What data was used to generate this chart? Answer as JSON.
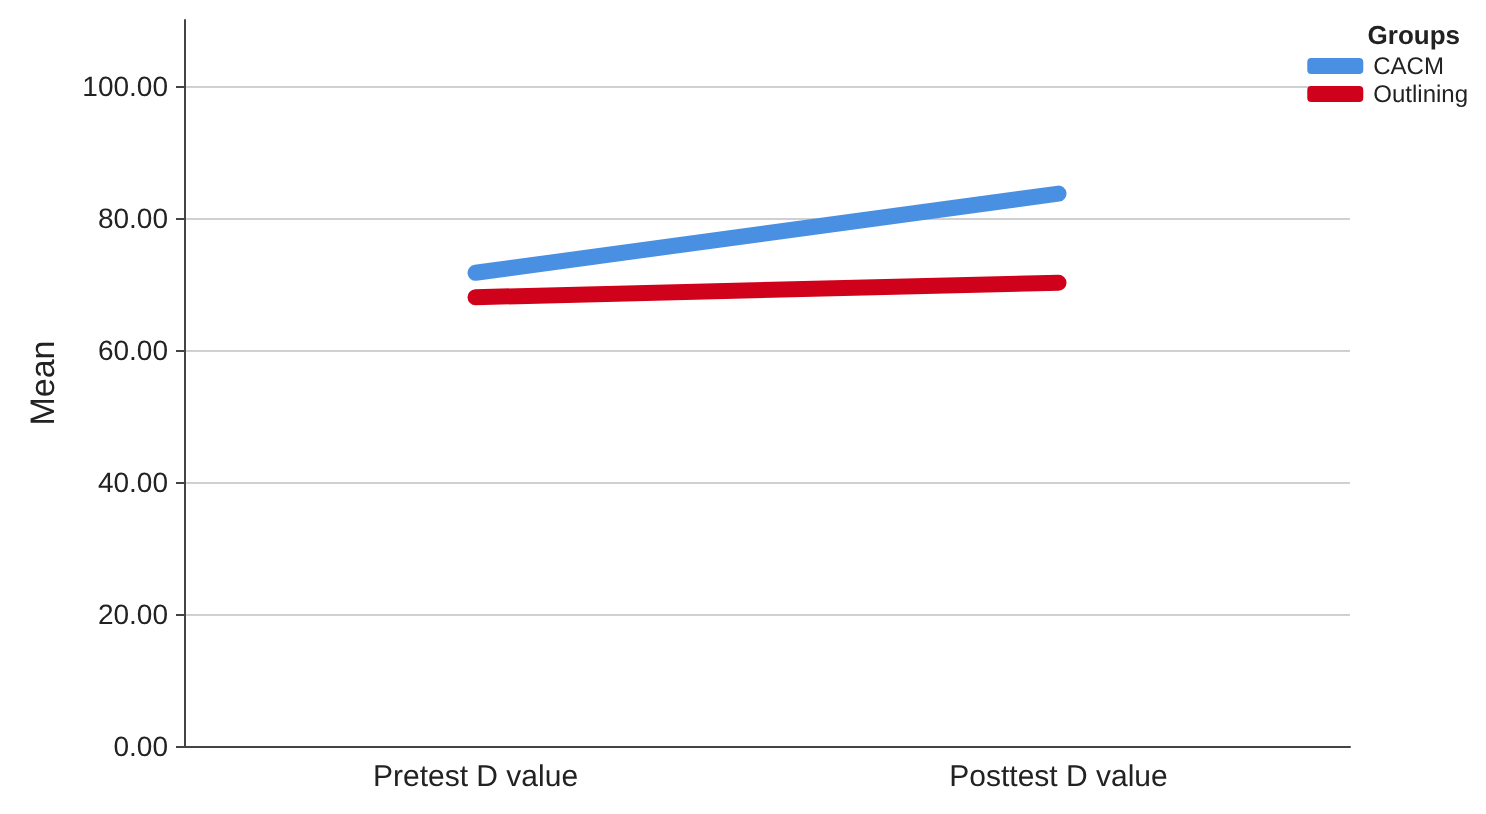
{
  "chart_data": {
    "type": "line",
    "ylabel": "Mean",
    "legend_title": "Groups",
    "categories": [
      "Pretest D value",
      "Posttest D value"
    ],
    "series": [
      {
        "name": "CACM",
        "color": "#4a90e2",
        "values": [
          71.7,
          83.7
        ]
      },
      {
        "name": "Outlining",
        "color": "#d0021b",
        "values": [
          68.0,
          70.2
        ]
      }
    ],
    "ylim": [
      0,
      110
    ],
    "yticks": [
      {
        "value": 0,
        "label": "0.00"
      },
      {
        "value": 20,
        "label": "20.00"
      },
      {
        "value": 40,
        "label": "40.00"
      },
      {
        "value": 60,
        "label": "60.00"
      },
      {
        "value": 80,
        "label": "80.00"
      },
      {
        "value": 100,
        "label": "100.00"
      }
    ],
    "grid": "y",
    "legend": "top right",
    "line_style": "solid"
  }
}
